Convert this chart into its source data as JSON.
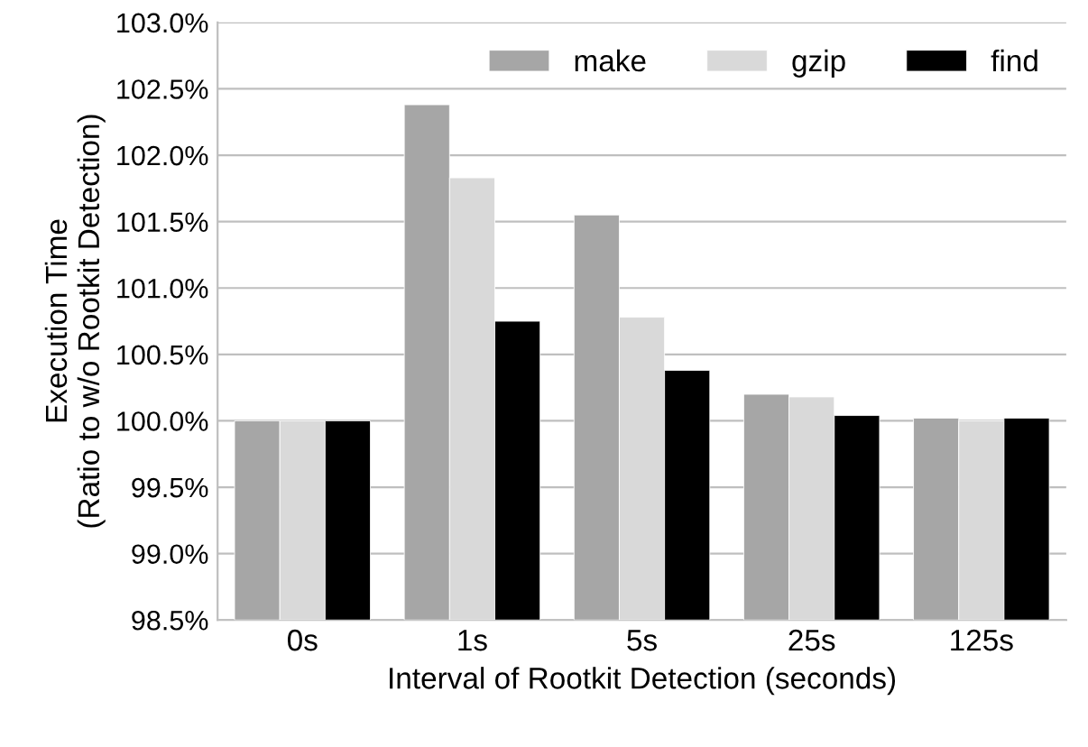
{
  "chart_data": {
    "type": "bar",
    "xlabel": "Interval of Rootkit Detection (seconds)",
    "ylabel": "Execution Time\n(Ratio to w/o Rootkit Detection)",
    "categories": [
      "0s",
      "1s",
      "5s",
      "25s",
      "125s"
    ],
    "series": [
      {
        "name": "make",
        "color": "#a6a6a6",
        "values": [
          100.0,
          102.38,
          101.55,
          100.2,
          100.02
        ]
      },
      {
        "name": "gzip",
        "color": "#d9d9d9",
        "values": [
          100.0,
          101.83,
          100.78,
          100.18,
          100.0
        ]
      },
      {
        "name": "find",
        "color": "#000000",
        "values": [
          100.0,
          100.75,
          100.38,
          100.04,
          100.02
        ]
      }
    ],
    "ylim": [
      98.5,
      103.0
    ],
    "yticks": [
      {
        "value": 98.5,
        "label": "98.5%"
      },
      {
        "value": 99.0,
        "label": "99.0%"
      },
      {
        "value": 99.5,
        "label": "99.5%"
      },
      {
        "value": 100.0,
        "label": "100.0%"
      },
      {
        "value": 100.5,
        "label": "100.5%"
      },
      {
        "value": 101.0,
        "label": "101.0%"
      },
      {
        "value": 101.5,
        "label": "101.5%"
      },
      {
        "value": 102.0,
        "label": "102.0%"
      },
      {
        "value": 102.5,
        "label": "102.5%"
      },
      {
        "value": 103.0,
        "label": "103.0%"
      }
    ],
    "grid": "y",
    "legend": "top right"
  }
}
